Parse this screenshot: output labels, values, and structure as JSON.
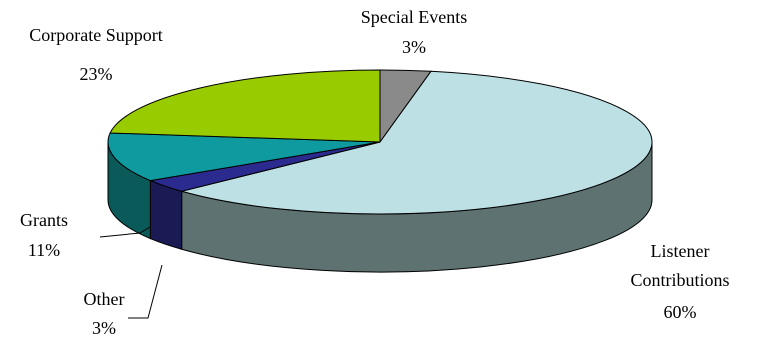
{
  "chart_data": {
    "type": "pie",
    "title": "",
    "slices": [
      {
        "name": "Special Events",
        "value": 3,
        "label": "3%",
        "color": "#8a8a8a",
        "side_color": "#5a5a5a"
      },
      {
        "name": "Listener Contributions",
        "value": 60,
        "label": "60%",
        "color": "#bde0e4",
        "side_color": "#5e7272"
      },
      {
        "name": "Other",
        "value": 3,
        "label": "3%",
        "color": "#2b2b8f",
        "side_color": "#1a1a55"
      },
      {
        "name": "Grants",
        "value": 11,
        "label": "11%",
        "color": "#0f9aa0",
        "side_color": "#0a5a5a"
      },
      {
        "name": "Corporate Support",
        "value": 23,
        "label": "23%",
        "color": "#99cc00",
        "side_color": "#5f7f00"
      }
    ],
    "style": "3d"
  }
}
